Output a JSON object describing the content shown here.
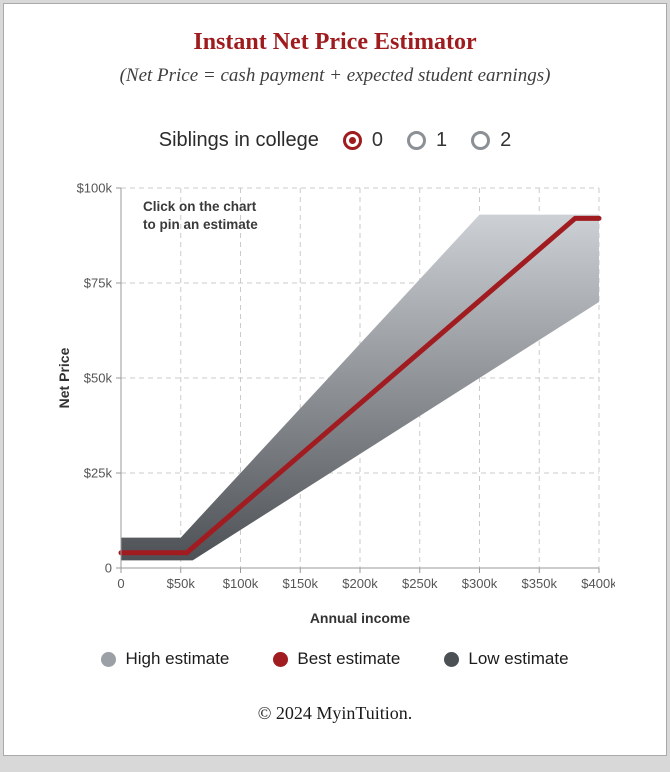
{
  "page": {
    "title": "Instant Net Price Estimator",
    "subtitle": "(Net Price = cash payment + expected student earnings)",
    "footer": "© 2024 MyinTuition.",
    "accent_color": "#9e1b1e"
  },
  "siblings": {
    "label": "Siblings in college",
    "options": [
      {
        "label": "0",
        "selected": true
      },
      {
        "label": "1",
        "selected": false
      },
      {
        "label": "2",
        "selected": false
      }
    ]
  },
  "chart_data": {
    "type": "area",
    "title": "",
    "xlabel": "Annual income",
    "ylabel": "Net Price",
    "xlim": [
      0,
      400
    ],
    "ylim": [
      0,
      100
    ],
    "units": "thousands of dollars",
    "grid": "dashed",
    "legend_position": "bottom",
    "annotation_lines": [
      "Click on the chart",
      "to pin an estimate"
    ],
    "x_ticks": [
      {
        "value": 0,
        "label": "0"
      },
      {
        "value": 50,
        "label": "$50k"
      },
      {
        "value": 100,
        "label": "$100k"
      },
      {
        "value": 150,
        "label": "$150k"
      },
      {
        "value": 200,
        "label": "$200k"
      },
      {
        "value": 250,
        "label": "$250k"
      },
      {
        "value": 300,
        "label": "$300k"
      },
      {
        "value": 350,
        "label": "$350k"
      },
      {
        "value": 400,
        "label": "$400k"
      }
    ],
    "y_ticks": [
      {
        "value": 0,
        "label": "0"
      },
      {
        "value": 25,
        "label": "$25k"
      },
      {
        "value": 50,
        "label": "$50k"
      },
      {
        "value": 75,
        "label": "$75k"
      },
      {
        "value": 100,
        "label": "$100k"
      }
    ],
    "series": [
      {
        "name": "High estimate",
        "color": "#9aa0a6",
        "x": [
          0,
          50,
          300,
          400
        ],
        "y": [
          8,
          8,
          93,
          93
        ]
      },
      {
        "name": "Best estimate",
        "color": "#a11c20",
        "x": [
          0,
          55,
          380,
          400
        ],
        "y": [
          4,
          4,
          92,
          92
        ]
      },
      {
        "name": "Low estimate",
        "color": "#4b5055",
        "x": [
          0,
          60,
          400
        ],
        "y": [
          2,
          2,
          70
        ]
      }
    ],
    "band": {
      "top_series": "High estimate",
      "bottom_series": "Low estimate",
      "gradient": [
        "#cdd1d5",
        "#4e5257"
      ]
    }
  },
  "legend": {
    "items": [
      {
        "label": "High estimate",
        "color": "#9aa0a6"
      },
      {
        "label": "Best estimate",
        "color": "#a11c20"
      },
      {
        "label": "Low estimate",
        "color": "#4b5055"
      }
    ]
  }
}
